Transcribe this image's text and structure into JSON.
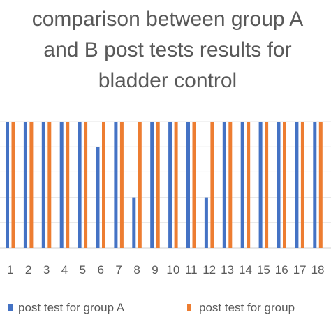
{
  "chart_data": {
    "type": "bar",
    "title_lines": [
      "comparison between group A",
      "and B post tests results for",
      "bladder control"
    ],
    "categories": [
      "1",
      "2",
      "3",
      "4",
      "5",
      "6",
      "7",
      "8",
      "9",
      "10",
      "11",
      "12",
      "13",
      "14",
      "15",
      "16",
      "17",
      "18"
    ],
    "series": [
      {
        "name": "post test for group A",
        "color": "#4472C4",
        "values": [
          5,
          5,
          5,
          5,
          5,
          4,
          5,
          2,
          5,
          5,
          5,
          2,
          5,
          5,
          5,
          5,
          5,
          5
        ]
      },
      {
        "name": "post test for group",
        "color": "#ED7D31",
        "values": [
          5,
          5,
          5,
          5,
          5,
          5,
          5,
          5,
          5,
          5,
          5,
          5,
          5,
          5,
          5,
          5,
          5,
          5
        ]
      }
    ],
    "ylim": [
      0,
      5
    ],
    "grid": true,
    "legend_position": "bottom"
  }
}
